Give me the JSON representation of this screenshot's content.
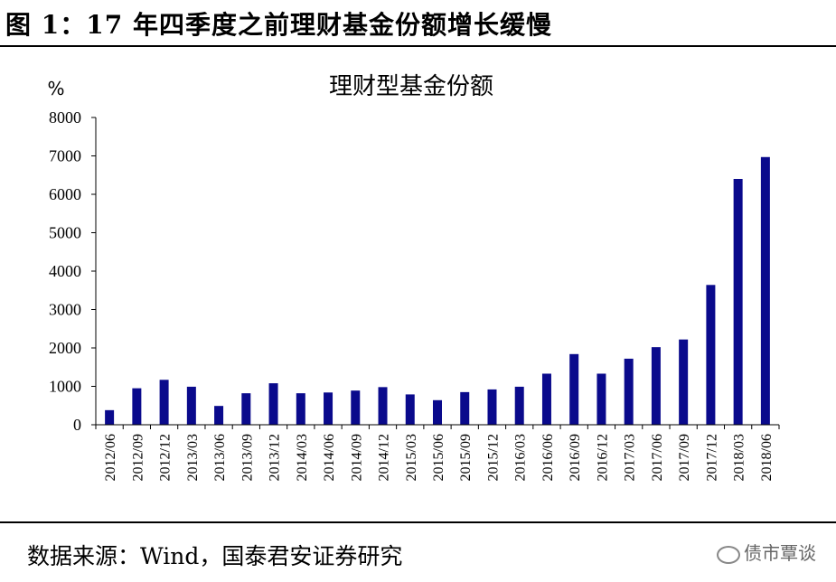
{
  "figure_title": "图 1：17 年四季度之前理财基金份额增长缓慢",
  "source": "数据来源：Wind，国泰君安证券研究",
  "watermark": "债市覃谈",
  "chart_data": {
    "type": "bar",
    "title": "理财型基金份额",
    "unit": "%",
    "color": "#0a0a8c",
    "ylim": [
      0,
      8000
    ],
    "yticks": [
      0,
      1000,
      2000,
      3000,
      4000,
      5000,
      6000,
      7000,
      8000
    ],
    "categories": [
      "2012/06",
      "2012/09",
      "2012/12",
      "2013/03",
      "2013/06",
      "2013/09",
      "2013/12",
      "2014/03",
      "2014/06",
      "2014/09",
      "2014/12",
      "2015/03",
      "2015/06",
      "2015/09",
      "2015/12",
      "2016/03",
      "2016/06",
      "2016/09",
      "2016/12",
      "2017/03",
      "2017/06",
      "2017/09",
      "2017/12",
      "2018/03",
      "2018/06"
    ],
    "values": [
      380,
      950,
      1170,
      990,
      490,
      820,
      1080,
      820,
      840,
      890,
      980,
      790,
      640,
      850,
      920,
      990,
      1330,
      1840,
      1330,
      1720,
      2020,
      2220,
      3640,
      6400,
      6970
    ]
  }
}
